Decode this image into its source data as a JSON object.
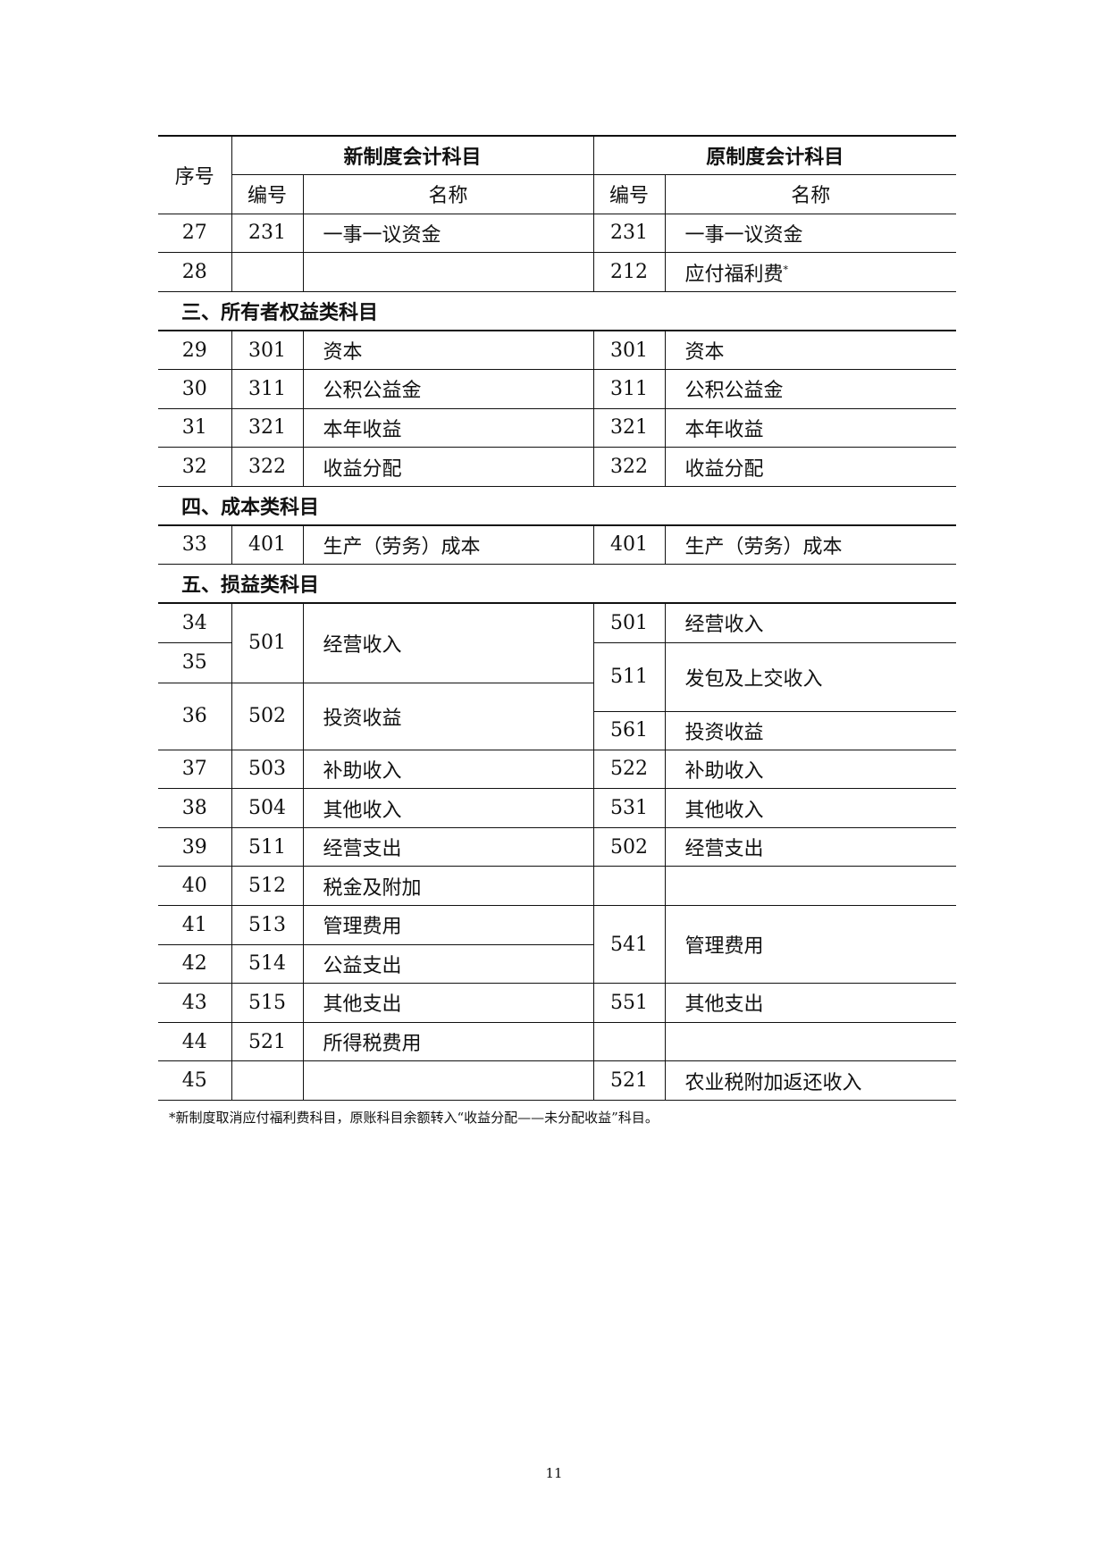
{
  "header": {
    "seq": "序号",
    "new_system": "新制度会计科目",
    "old_system": "原制度会计科目",
    "code": "编号",
    "name": "名称"
  },
  "rows": {
    "r27": {
      "seq": "27",
      "new_code": "231",
      "new_name": "一事一议资金",
      "old_code": "231",
      "old_name": "一事一议资金"
    },
    "r28": {
      "seq": "28",
      "new_code": "",
      "new_name": "",
      "old_code": "212",
      "old_name": "应付福利费",
      "old_mark": "*"
    },
    "sec3": "三、所有者权益类科目",
    "r29": {
      "seq": "29",
      "new_code": "301",
      "new_name": "资本",
      "old_code": "301",
      "old_name": "资本"
    },
    "r30": {
      "seq": "30",
      "new_code": "311",
      "new_name": "公积公益金",
      "old_code": "311",
      "old_name": "公积公益金"
    },
    "r31": {
      "seq": "31",
      "new_code": "321",
      "new_name": "本年收益",
      "old_code": "321",
      "old_name": "本年收益"
    },
    "r32": {
      "seq": "32",
      "new_code": "322",
      "new_name": "收益分配",
      "old_code": "322",
      "old_name": "收益分配"
    },
    "sec4": "四、成本类科目",
    "r33": {
      "seq": "33",
      "new_code": "401",
      "new_name": "生产（劳务）成本",
      "old_code": "401",
      "old_name": "生产（劳务）成本"
    },
    "sec5": "五、损益类科目",
    "r34": {
      "seq": "34",
      "old_code": "501",
      "old_name": "经营收入"
    },
    "r35": {
      "seq": "35",
      "old_code": "511",
      "old_name": "发包及上交收入"
    },
    "r34_35": {
      "new_code": "501",
      "new_name": "经营收入"
    },
    "r36": {
      "seq": "36",
      "new_code": "502",
      "new_name": "投资收益",
      "old_code": "561",
      "old_name": "投资收益"
    },
    "r37": {
      "seq": "37",
      "new_code": "503",
      "new_name": "补助收入",
      "old_code": "522",
      "old_name": "补助收入"
    },
    "r38": {
      "seq": "38",
      "new_code": "504",
      "new_name": "其他收入",
      "old_code": "531",
      "old_name": "其他收入"
    },
    "r39": {
      "seq": "39",
      "new_code": "511",
      "new_name": "经营支出",
      "old_code": "502",
      "old_name": "经营支出"
    },
    "r40": {
      "seq": "40",
      "new_code": "512",
      "new_name": "税金及附加",
      "old_code": "",
      "old_name": ""
    },
    "r41": {
      "seq": "41",
      "new_code": "513",
      "new_name": "管理费用"
    },
    "r42": {
      "seq": "42",
      "new_code": "514",
      "new_name": "公益支出"
    },
    "r41_42": {
      "old_code": "541",
      "old_name": "管理费用"
    },
    "r43": {
      "seq": "43",
      "new_code": "515",
      "new_name": "其他支出",
      "old_code": "551",
      "old_name": "其他支出"
    },
    "r44": {
      "seq": "44",
      "new_code": "521",
      "new_name": "所得税费用",
      "old_code": "",
      "old_name": ""
    },
    "r45": {
      "seq": "45",
      "new_code": "",
      "new_name": "",
      "old_code": "521",
      "old_name": "农业税附加返还收入"
    }
  },
  "footnote": "*新制度取消应付福利费科目，原账科目余额转入“收益分配——未分配收益”科目。",
  "page_number": "11"
}
